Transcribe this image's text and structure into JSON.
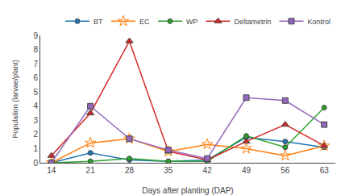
{
  "chart_data": {
    "type": "line",
    "xlabel": "Days after planting (DAP)",
    "ylabel": "Population (larvae/plant)",
    "x": [
      14,
      21,
      28,
      35,
      42,
      49,
      56,
      63
    ],
    "series": [
      {
        "name": "BT",
        "marker": "circle",
        "values": [
          0.0,
          0.7,
          0.2,
          0.1,
          0.2,
          1.8,
          1.5,
          1.1
        ]
      },
      {
        "name": "EC",
        "marker": "star-open",
        "values": [
          0.0,
          1.4,
          1.7,
          0.8,
          1.3,
          1.0,
          0.5,
          1.2
        ]
      },
      {
        "name": "WP",
        "marker": "circle",
        "values": [
          0.0,
          0.1,
          0.3,
          0.1,
          0.1,
          1.9,
          1.1,
          3.9
        ]
      },
      {
        "name": "Deltametrin",
        "marker": "triangle-up",
        "values": [
          0.5,
          3.5,
          8.6,
          0.8,
          0.2,
          1.5,
          2.7,
          1.2
        ]
      },
      {
        "name": "Kontrol",
        "marker": "square",
        "values": [
          0.0,
          4.0,
          1.7,
          0.9,
          0.3,
          4.6,
          4.4,
          2.7
        ]
      }
    ],
    "xlim": [
      12,
      65
    ],
    "xticks": [
      14,
      21,
      28,
      35,
      42,
      49,
      56,
      63
    ],
    "ylim": [
      0,
      9
    ],
    "yticks": [
      0,
      1,
      2,
      3,
      4,
      5,
      6,
      7,
      8,
      9
    ],
    "grid": false,
    "legend": "top"
  }
}
